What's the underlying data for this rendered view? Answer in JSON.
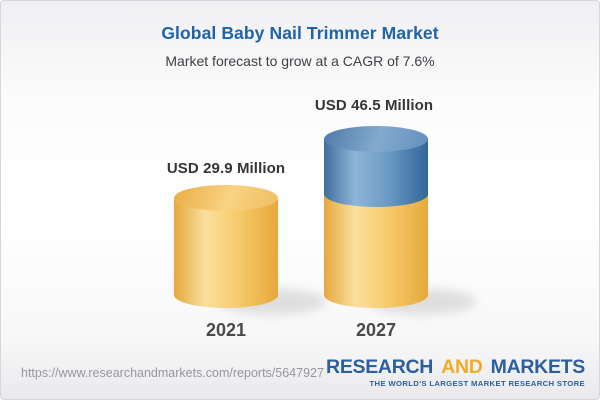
{
  "header": {
    "title": "Global Baby Nail Trimmer Market",
    "subtitle": "Market forecast to grow at a CAGR of 7.6%"
  },
  "chart_data": {
    "type": "bar",
    "variant": "3d-cylinder-stacked",
    "title": "Global Baby Nail Trimmer Market",
    "subtitle": "Market forecast to grow at a CAGR of 7.6%",
    "unit": "USD Million",
    "cagr_percent": 7.6,
    "categories": [
      "2021",
      "2027"
    ],
    "values": [
      29.9,
      46.5
    ],
    "grid": false,
    "axes_visible": false,
    "legend_visible": false,
    "bars": [
      {
        "category": "2021",
        "value": 29.9,
        "label": "USD 29.9 Million",
        "segments": [
          {
            "name": "base-2021-value",
            "value": 29.9,
            "color": "#f4c261"
          }
        ]
      },
      {
        "category": "2027",
        "value": 46.5,
        "label": "USD 46.5 Million",
        "segments": [
          {
            "name": "base-2021-value",
            "value": 29.9,
            "color": "#f4c261"
          },
          {
            "name": "growth-over-2021",
            "value": 16.6,
            "color": "#6494c0"
          }
        ]
      }
    ]
  },
  "footer": {
    "url": "https://www.researchandmarkets.com/reports/5647927",
    "logo": {
      "word_research": "RESEARCH",
      "word_and": "AND",
      "word_markets": "MARKETS",
      "tagline": "THE WORLD'S LARGEST MARKET RESEARCH STORE"
    }
  },
  "colors": {
    "title_blue": "#2063a6",
    "subtitle_gray": "#3f4043",
    "value_label_dark": "#353538",
    "year_gray": "#4a4a4d",
    "url_gray": "#97979a",
    "logo_blue": "#2c5f9d",
    "logo_gold": "#f2ab28",
    "bar_yellow": "#f4c261",
    "bar_blue": "#6494c0"
  }
}
